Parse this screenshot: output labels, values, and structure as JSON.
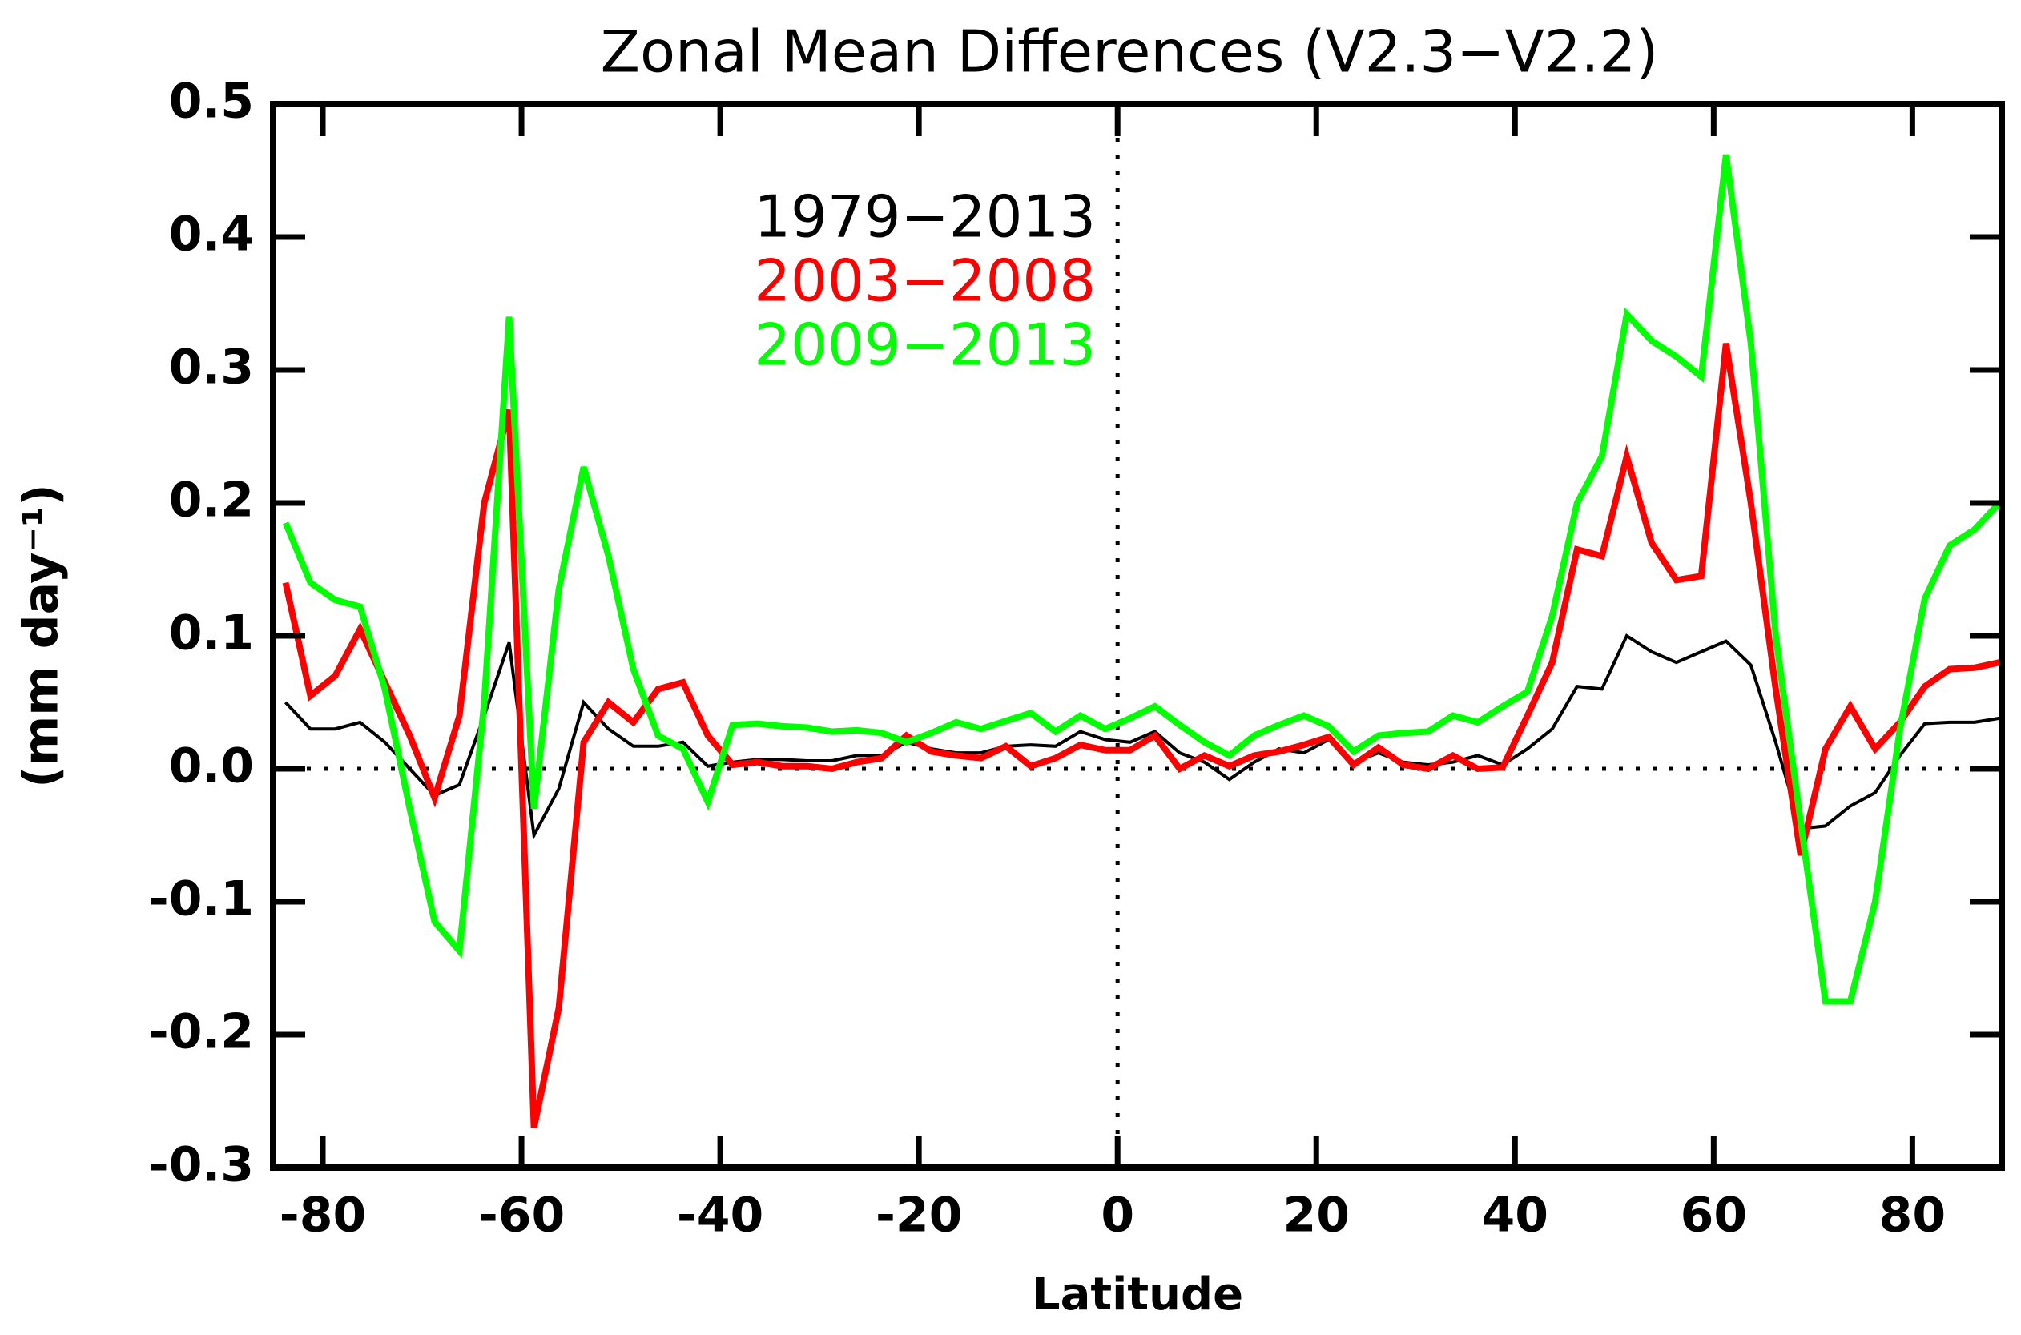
{
  "chart_data": {
    "type": "line",
    "title": "Zonal Mean Differences (V2.3−V2.2)",
    "xlabel": "Latitude",
    "ylabel": "(mm day⁻¹)",
    "x": [
      -83.75,
      -81.25,
      -78.75,
      -76.25,
      -73.75,
      -71.25,
      -68.75,
      -66.25,
      -63.75,
      -61.25,
      -58.75,
      -56.25,
      -53.75,
      -51.25,
      -48.75,
      -46.25,
      -43.75,
      -41.25,
      -38.75,
      -36.25,
      -33.75,
      -31.25,
      -28.75,
      -26.25,
      -23.75,
      -21.25,
      -18.75,
      -16.25,
      -13.75,
      -11.25,
      -8.75,
      -6.25,
      -3.75,
      -1.25,
      1.25,
      3.75,
      6.25,
      8.75,
      11.25,
      13.75,
      16.25,
      18.75,
      21.25,
      23.75,
      26.25,
      28.75,
      31.25,
      33.75,
      36.25,
      38.75,
      41.25,
      43.75,
      46.25,
      48.75,
      51.25,
      53.75,
      56.25,
      58.75,
      61.25,
      63.75,
      66.25,
      68.75,
      71.25,
      73.75,
      76.25,
      78.75,
      81.25,
      83.75,
      86.25,
      88.75
    ],
    "series": [
      {
        "name": "1979−2013",
        "color": "#000000",
        "width": 4,
        "values": [
          0.05,
          0.03,
          0.03,
          0.035,
          0.02,
          0.0,
          -0.02,
          -0.012,
          0.04,
          0.095,
          -0.05,
          -0.015,
          0.05,
          0.03,
          0.017,
          0.017,
          0.02,
          0.002,
          0.005,
          0.007,
          0.007,
          0.006,
          0.006,
          0.01,
          0.01,
          0.02,
          0.015,
          0.012,
          0.012,
          0.017,
          0.018,
          0.017,
          0.028,
          0.022,
          0.02,
          0.028,
          0.012,
          0.005,
          -0.008,
          0.005,
          0.015,
          0.012,
          0.022,
          0.005,
          0.012,
          0.005,
          0.003,
          0.005,
          0.01,
          0.003,
          0.015,
          0.03,
          0.062,
          0.06,
          0.1,
          0.088,
          0.08,
          0.088,
          0.096,
          0.078,
          0.02,
          -0.045,
          -0.043,
          -0.028,
          -0.018,
          0.01,
          0.034,
          0.035,
          0.035,
          0.038
        ]
      },
      {
        "name": "2003−2008",
        "color": "#ff0000",
        "width": 8,
        "values": [
          0.14,
          0.055,
          0.07,
          0.105,
          0.065,
          0.025,
          -0.022,
          0.04,
          0.2,
          0.27,
          -0.27,
          -0.18,
          0.02,
          0.05,
          0.035,
          0.06,
          0.065,
          0.025,
          0.003,
          0.005,
          0.002,
          0.002,
          0.0,
          0.005,
          0.008,
          0.025,
          0.013,
          0.01,
          0.008,
          0.017,
          0.002,
          0.008,
          0.018,
          0.014,
          0.014,
          0.025,
          0.0,
          0.01,
          0.002,
          0.01,
          0.013,
          0.018,
          0.024,
          0.003,
          0.016,
          0.003,
          0.0,
          0.01,
          0.0,
          0.001,
          0.04,
          0.08,
          0.165,
          0.16,
          0.235,
          0.17,
          0.142,
          0.145,
          0.32,
          0.2,
          0.06,
          -0.065,
          0.015,
          0.047,
          0.015,
          0.035,
          0.062,
          0.075,
          0.076,
          0.08
        ]
      },
      {
        "name": "2009−2013",
        "color": "#00ff00",
        "width": 8,
        "values": [
          0.185,
          0.14,
          0.127,
          0.122,
          0.06,
          -0.03,
          -0.115,
          -0.137,
          0.05,
          0.34,
          -0.03,
          0.135,
          0.227,
          0.16,
          0.075,
          0.025,
          0.015,
          -0.025,
          0.033,
          0.034,
          0.032,
          0.031,
          0.028,
          0.029,
          0.027,
          0.02,
          0.027,
          0.035,
          0.03,
          0.036,
          0.042,
          0.028,
          0.04,
          0.03,
          0.038,
          0.047,
          0.033,
          0.02,
          0.01,
          0.025,
          0.033,
          0.04,
          0.032,
          0.013,
          0.025,
          0.027,
          0.028,
          0.04,
          0.035,
          0.047,
          0.058,
          0.115,
          0.2,
          0.235,
          0.342,
          0.322,
          0.31,
          0.295,
          0.462,
          0.32,
          0.1,
          -0.04,
          -0.175,
          -0.175,
          -0.1,
          0.03,
          0.128,
          0.168,
          0.18,
          0.2
        ]
      }
    ],
    "xlim": [
      -85,
      89
    ],
    "ylim": [
      -0.3,
      0.5
    ],
    "xticks": [
      -80,
      -60,
      -40,
      -20,
      0,
      20,
      40,
      60,
      80
    ],
    "yticks": [
      -0.3,
      -0.2,
      -0.1,
      {
        "value": 0,
        "label": "0.0"
      },
      0.1,
      0.2,
      0.3,
      0.4,
      0.5
    ],
    "hlines": [
      0
    ],
    "vlines": [
      0
    ],
    "grid": false
  }
}
